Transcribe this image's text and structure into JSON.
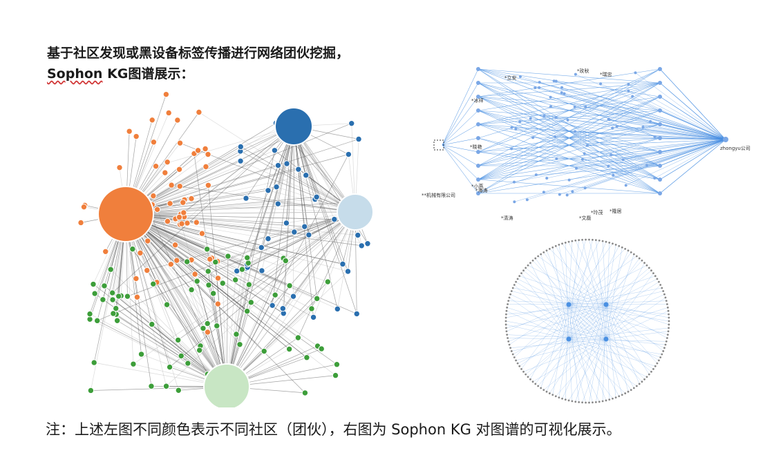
{
  "title": {
    "line1": "基于社区发现或黑设备标签传播进行网络团伙挖掘，",
    "line2_brand": "Sophon",
    "line2_rest": " KG图谱展示："
  },
  "caption": "注：上述左图不同颜色表示不同社区（团伙），右图为 Sophon KG 对图谱的可视化展示。",
  "colors": {
    "orange": "#f07f3c",
    "blue": "#2a6faf",
    "green": "#3d9e3a",
    "light_blue": "#c6dcea",
    "light_green": "#c8e6c4",
    "edge_dark": "#555555",
    "edge_light": "#bbbbbb",
    "kg_blue": "#4a90e2",
    "kg_node": "#7aa7e6"
  },
  "right_top_graph": {
    "labels": [
      {
        "text": "*立安"
      },
      {
        "text": "*玫秋"
      },
      {
        "text": "*瑞忠"
      },
      {
        "text": "*冰祥"
      },
      {
        "text": "*晓艳"
      },
      {
        "text": "*海涛"
      },
      {
        "text": "*小燕"
      },
      {
        "text": "*清涛"
      },
      {
        "text": "*文磊"
      },
      {
        "text": "*隆居"
      },
      {
        "text": "**机械有限公司"
      },
      {
        "text": "zhongyu公司"
      },
      {
        "text": "*玲茂"
      }
    ]
  }
}
